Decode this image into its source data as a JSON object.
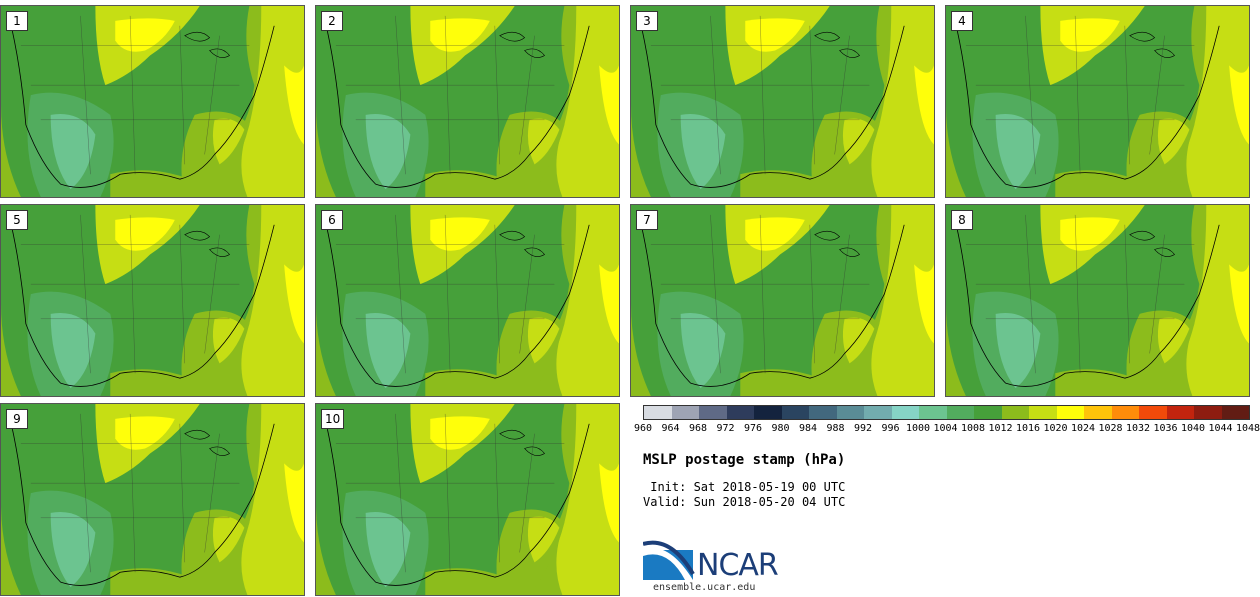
{
  "panels": [
    "1",
    "2",
    "3",
    "4",
    "5",
    "6",
    "7",
    "8",
    "9",
    "10"
  ],
  "colorbar": {
    "colors": [
      "#d8dce2",
      "#9ea4b4",
      "#5f6a86",
      "#2e3c5c",
      "#14233e",
      "#2a4460",
      "#42687e",
      "#5a8c96",
      "#72acae",
      "#86d4c6",
      "#6cc490",
      "#52ac5e",
      "#46a03a",
      "#8cbc1c",
      "#c6de14",
      "#ffff0a",
      "#ffc40a",
      "#ff8c0a",
      "#f24a0a",
      "#c2240e",
      "#8e1c10",
      "#621c14"
    ],
    "ticks": [
      "960",
      "964",
      "968",
      "972",
      "976",
      "980",
      "984",
      "988",
      "992",
      "996",
      "1000",
      "1004",
      "1008",
      "1012",
      "1016",
      "1020",
      "1024",
      "1028",
      "1032",
      "1036",
      "1040",
      "1044",
      "1048"
    ]
  },
  "title": "MSLP postage stamp (hPa)",
  "init": " Init: Sat 2018-05-19 00 UTC",
  "valid": "Valid: Sun 2018-05-20 04 UTC",
  "logo": {
    "text": "NCAR",
    "colors": [
      "#1c3e78",
      "#1a7ac2"
    ]
  },
  "site": "ensemble.ucar.edu"
}
